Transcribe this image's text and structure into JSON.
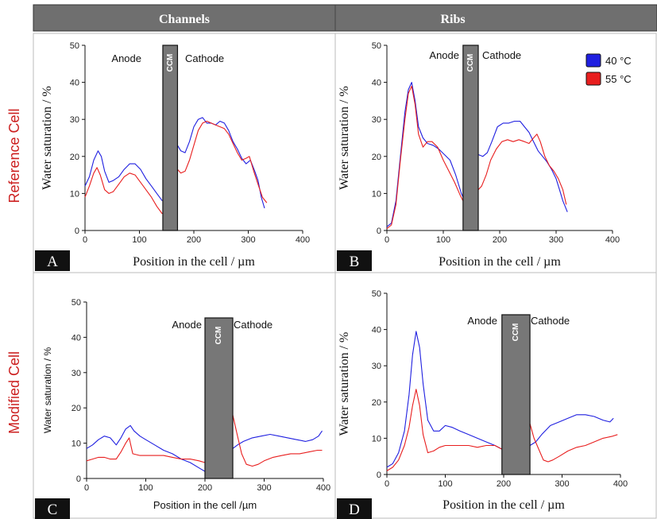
{
  "header": {
    "left": "Channels",
    "right": "Ribs"
  },
  "rows": {
    "top": "Reference Cell",
    "bottom": "Modified Cell"
  },
  "colors": {
    "s40": "#1f1fe0",
    "s55": "#e81e1e",
    "ccm": "#777777",
    "header_bg": "#6f6f6f",
    "row_label": "#cc1f1f"
  },
  "chart_data": [
    {
      "type": "line",
      "panel": "A",
      "xlabel": "Position in the cell / µm",
      "ylabel": "Water saturation / %",
      "xlim": [
        0,
        400
      ],
      "ylim": [
        0,
        50
      ],
      "xticks": [
        0,
        100,
        200,
        300,
        400
      ],
      "yticks": [
        0,
        10,
        20,
        30,
        40,
        50
      ],
      "annotations": {
        "anode": "Anode",
        "cathode": "Cathode",
        "ccm": "CCM"
      },
      "ccm_range": [
        143,
        170
      ],
      "series": [
        {
          "name": "40 °C",
          "segments": [
            {
              "x": [
                0,
                8,
                16,
                24,
                30,
                36,
                44,
                52,
                62,
                72,
                82,
                92,
                102,
                112,
                122,
                132,
                142
              ],
              "y": [
                12,
                14.5,
                19,
                21.5,
                20,
                16,
                13,
                13.5,
                14.5,
                16.5,
                18,
                18,
                16.5,
                14,
                12,
                10,
                8
              ]
            },
            {
              "x": [
                170,
                176,
                184,
                192,
                200,
                208,
                216,
                224,
                232,
                240,
                248,
                256,
                264,
                272,
                280,
                288,
                296,
                304,
                312,
                318,
                324,
                330
              ],
              "y": [
                23,
                21.5,
                21,
                24,
                28,
                30,
                30.5,
                29,
                29,
                28.5,
                29.5,
                29,
                27,
                24,
                22,
                19.5,
                18,
                19,
                16,
                13.5,
                9,
                6
              ]
            }
          ]
        },
        {
          "name": "55 °C",
          "segments": [
            {
              "x": [
                0,
                8,
                16,
                22,
                28,
                36,
                44,
                52,
                62,
                72,
                82,
                92,
                102,
                112,
                122,
                132,
                142
              ],
              "y": [
                9,
                12,
                15.5,
                17,
                15,
                11,
                10,
                10.5,
                12.5,
                14.5,
                15.5,
                15,
                13,
                11,
                9,
                6.5,
                4.5
              ]
            },
            {
              "x": [
                170,
                176,
                184,
                192,
                200,
                208,
                216,
                224,
                232,
                240,
                248,
                256,
                264,
                272,
                280,
                288,
                296,
                302,
                310,
                318,
                326,
                334
              ],
              "y": [
                16.5,
                15.5,
                16,
                19,
                23,
                27,
                29,
                29.5,
                29,
                28.5,
                28,
                27.5,
                26,
                23.5,
                21,
                19,
                19.5,
                20,
                16,
                12.5,
                9,
                7.5
              ]
            }
          ]
        }
      ]
    },
    {
      "type": "line",
      "panel": "B",
      "xlabel": "Position in the cell / µm",
      "ylabel": "Water saturation / %",
      "xlim": [
        0,
        400
      ],
      "ylim": [
        0,
        50
      ],
      "xticks": [
        0,
        100,
        200,
        300,
        400
      ],
      "yticks": [
        0,
        10,
        20,
        30,
        40,
        50
      ],
      "annotations": {
        "anode": "Anode",
        "cathode": "Cathode",
        "ccm": "CCM"
      },
      "ccm_range": [
        135,
        162
      ],
      "legend": {
        "position": "top-right"
      },
      "series": [
        {
          "name": "40 °C",
          "segments": [
            {
              "x": [
                0,
                8,
                16,
                24,
                32,
                38,
                44,
                50,
                56,
                64,
                72,
                82,
                92,
                102,
                112,
                122,
                132,
                135
              ],
              "y": [
                1,
                2,
                8,
                20,
                32,
                38,
                40,
                35,
                28,
                25,
                23.5,
                23,
                22,
                20.5,
                19,
                15,
                10,
                9
              ]
            },
            {
              "x": [
                162,
                170,
                178,
                186,
                196,
                206,
                216,
                226,
                236,
                244,
                252,
                260,
                268,
                276,
                284,
                292,
                300,
                306,
                312,
                320
              ],
              "y": [
                20.5,
                20,
                21,
                24,
                28,
                29,
                29,
                29.5,
                29.5,
                28,
                26.5,
                24,
                21.5,
                20,
                18.5,
                16.5,
                14,
                11,
                8,
                5
              ]
            }
          ]
        },
        {
          "name": "55 °C",
          "segments": [
            {
              "x": [
                0,
                8,
                16,
                24,
                32,
                38,
                44,
                50,
                56,
                64,
                72,
                80,
                90,
                100,
                110,
                120,
                130,
                135
              ],
              "y": [
                0.5,
                1.5,
                7,
                19,
                30,
                37,
                39,
                34,
                26,
                22.5,
                24,
                24,
                22.5,
                19,
                16,
                13,
                9.5,
                8
              ]
            },
            {
              "x": [
                162,
                168,
                176,
                184,
                194,
                204,
                214,
                224,
                234,
                244,
                252,
                260,
                266,
                272,
                280,
                288,
                296,
                304,
                312,
                318
              ],
              "y": [
                11,
                12,
                15,
                19,
                22,
                24,
                24.5,
                24,
                24.5,
                24,
                23.5,
                25,
                26,
                24,
                20,
                17.5,
                16,
                14,
                11,
                7
              ]
            }
          ]
        }
      ]
    },
    {
      "type": "line",
      "panel": "C",
      "xlabel": "Position in the cell /µm",
      "ylabel": "Water saturation / %",
      "xlim": [
        0,
        400
      ],
      "ylim": [
        0,
        50
      ],
      "xticks": [
        0,
        100,
        200,
        300,
        400
      ],
      "yticks": [
        0,
        10,
        20,
        30,
        40,
        50
      ],
      "annotations": {
        "anode": "Anode",
        "cathode": "Cathode",
        "ccm": "CCM"
      },
      "ccm_range": [
        200,
        247
      ],
      "series": [
        {
          "name": "40 °C",
          "segments": [
            {
              "x": [
                0,
                10,
                20,
                30,
                40,
                50,
                58,
                66,
                74,
                80,
                90,
                100,
                115,
                130,
                145,
                160,
                175,
                190,
                200
              ],
              "y": [
                8.5,
                9.5,
                11,
                12,
                11.5,
                9.5,
                11.5,
                14,
                15,
                13.5,
                12,
                11,
                9.5,
                8,
                7,
                5.5,
                4.5,
                3,
                2
              ]
            },
            {
              "x": [
                247,
                255,
                265,
                280,
                295,
                310,
                325,
                340,
                355,
                370,
                382,
                392,
                398
              ],
              "y": [
                8.5,
                9.5,
                10.5,
                11.5,
                12,
                12.5,
                12,
                11.5,
                11,
                10.5,
                11,
                12,
                13.5
              ]
            }
          ]
        },
        {
          "name": "55 °C",
          "segments": [
            {
              "x": [
                0,
                10,
                20,
                30,
                40,
                50,
                58,
                66,
                72,
                78,
                90,
                100,
                115,
                130,
                145,
                160,
                175,
                190,
                200
              ],
              "y": [
                5,
                5.5,
                6,
                6,
                5.5,
                5.5,
                7.5,
                10,
                11.5,
                7,
                6.5,
                6.5,
                6.5,
                6.5,
                6,
                5.5,
                5.5,
                5,
                4.5
              ]
            },
            {
              "x": [
                247,
                255,
                262,
                270,
                280,
                290,
                300,
                315,
                330,
                345,
                360,
                375,
                390,
                398
              ],
              "y": [
                18,
                12,
                7,
                4,
                3.5,
                4,
                5,
                6,
                6.5,
                7,
                7,
                7.5,
                8,
                8
              ]
            }
          ]
        }
      ]
    },
    {
      "type": "line",
      "panel": "D",
      "xlabel": "Position in the cell / µm",
      "ylabel": "Water saturation / %",
      "xlim": [
        0,
        400
      ],
      "ylim": [
        0,
        50
      ],
      "xticks": [
        0,
        100,
        200,
        300,
        400
      ],
      "yticks": [
        0,
        10,
        20,
        30,
        40,
        50
      ],
      "annotations": {
        "anode": "Anode",
        "cathode": "Cathode",
        "ccm": "CCM"
      },
      "ccm_range": [
        197,
        245
      ],
      "series": [
        {
          "name": "40 °C",
          "segments": [
            {
              "x": [
                0,
                10,
                20,
                30,
                38,
                44,
                50,
                56,
                62,
                70,
                80,
                90,
                100,
                112,
                125,
                140,
                155,
                170,
                185,
                197
              ],
              "y": [
                2,
                3,
                6,
                12,
                22,
                33,
                39.5,
                35,
                25,
                15,
                12,
                12,
                13.5,
                13,
                12,
                11,
                10,
                9,
                8,
                7
              ]
            },
            {
              "x": [
                245,
                255,
                265,
                280,
                295,
                310,
                325,
                340,
                355,
                370,
                382,
                388
              ],
              "y": [
                8,
                9,
                11,
                13.5,
                14.5,
                15.5,
                16.5,
                16.5,
                16,
                15,
                14.5,
                15.5
              ]
            }
          ]
        },
        {
          "name": "55 °C",
          "segments": [
            {
              "x": [
                0,
                10,
                20,
                30,
                38,
                44,
                50,
                56,
                62,
                70,
                80,
                90,
                100,
                112,
                125,
                140,
                155,
                170,
                185,
                197
              ],
              "y": [
                1,
                2,
                4,
                8,
                13,
                19,
                23.5,
                19,
                11,
                6,
                6.5,
                7.5,
                8,
                8,
                8,
                8,
                7.5,
                8,
                8,
                7
              ]
            },
            {
              "x": [
                245,
                252,
                260,
                268,
                276,
                284,
                295,
                310,
                325,
                340,
                355,
                370,
                385,
                395
              ],
              "y": [
                14,
                10,
                7,
                4,
                3.5,
                4,
                5,
                6.5,
                7.5,
                8,
                9,
                10,
                10.5,
                11
              ]
            }
          ]
        }
      ]
    }
  ]
}
